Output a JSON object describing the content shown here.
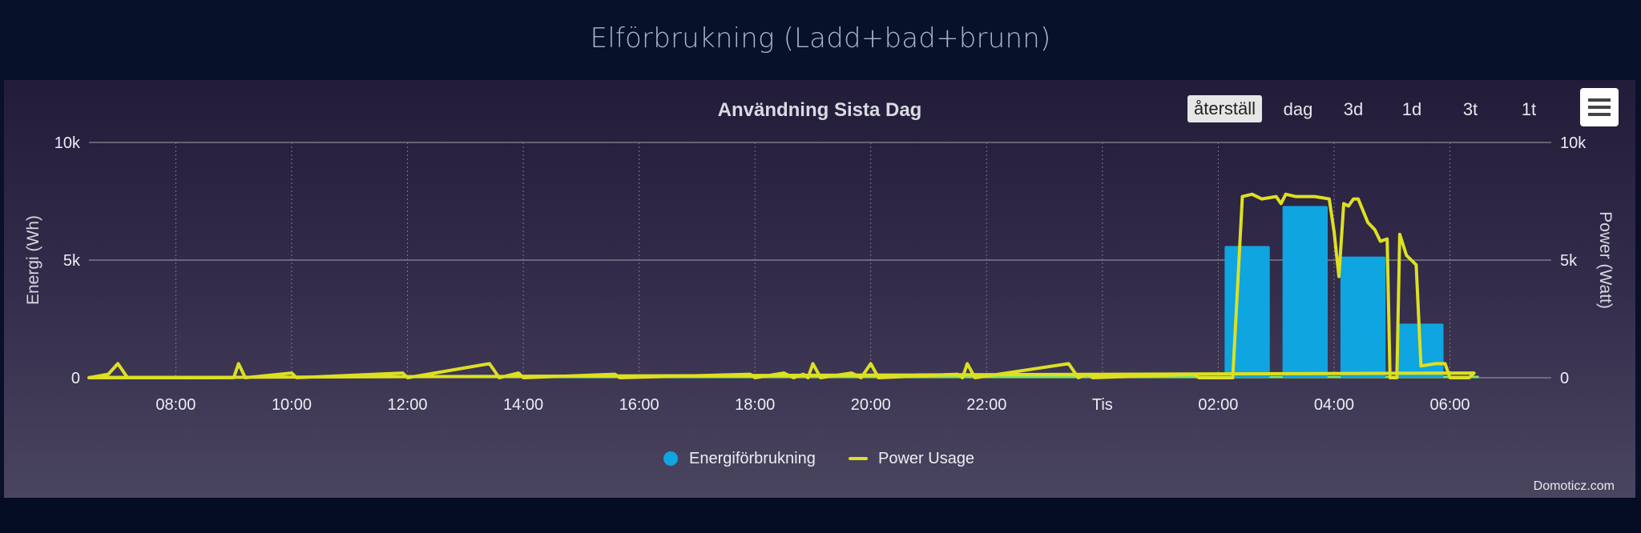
{
  "page": {
    "title": "Elförbrukning (Ladd+bad+brunn)"
  },
  "chart": {
    "title": "Användning Sista Dag",
    "credits": "Domoticz.com",
    "zoom_buttons": [
      "återställ",
      "dag",
      "3d",
      "1d",
      "3t",
      "1t"
    ],
    "menu_icon": "hamburger-menu-icon"
  },
  "chart_data": {
    "type": "bar",
    "title": "Användning Sista Dag",
    "x_ticks": [
      "08:00",
      "10:00",
      "12:00",
      "14:00",
      "16:00",
      "18:00",
      "20:00",
      "22:00",
      "Tis",
      "02:00",
      "04:00",
      "06:00"
    ],
    "x_range": [
      "06:30",
      "07:45 (next day)"
    ],
    "y_left": {
      "label": "Energi (Wh)",
      "ticks": [
        "0",
        "5k",
        "10k"
      ],
      "range": [
        0,
        10000
      ]
    },
    "y_right": {
      "label": "Power (Watt)",
      "ticks": [
        "0",
        "5k",
        "10k"
      ],
      "range": [
        0,
        10000
      ]
    },
    "grid": true,
    "legend_position": "bottom-center",
    "series": [
      {
        "name": "Energiförbrukning",
        "type": "column",
        "color": "#0ea5e0",
        "axis": "left",
        "points": [
          {
            "x": "02:30",
            "y": 5600
          },
          {
            "x": "03:30",
            "y": 7300
          },
          {
            "x": "04:30",
            "y": 5150
          },
          {
            "x": "05:30",
            "y": 2300
          }
        ]
      },
      {
        "name": "Power Usage",
        "type": "line",
        "color": "#dde021",
        "axis": "right",
        "points": [
          {
            "x": "06:30",
            "y": 0
          },
          {
            "x": "06:50",
            "y": 150
          },
          {
            "x": "07:00",
            "y": 600
          },
          {
            "x": "07:10",
            "y": 0
          },
          {
            "x": "09:00",
            "y": 0
          },
          {
            "x": "09:05",
            "y": 600
          },
          {
            "x": "09:12",
            "y": 0
          },
          {
            "x": "10:00",
            "y": 200
          },
          {
            "x": "10:05",
            "y": 0
          },
          {
            "x": "11:55",
            "y": 200
          },
          {
            "x": "12:00",
            "y": 0
          },
          {
            "x": "13:25",
            "y": 600
          },
          {
            "x": "13:35",
            "y": 0
          },
          {
            "x": "13:55",
            "y": 200
          },
          {
            "x": "14:00",
            "y": 0
          },
          {
            "x": "15:35",
            "y": 150
          },
          {
            "x": "15:40",
            "y": 0
          },
          {
            "x": "17:55",
            "y": 150
          },
          {
            "x": "18:00",
            "y": 0
          },
          {
            "x": "18:30",
            "y": 200
          },
          {
            "x": "18:40",
            "y": 0
          },
          {
            "x": "18:50",
            "y": 150
          },
          {
            "x": "18:55",
            "y": 0
          },
          {
            "x": "19:00",
            "y": 600
          },
          {
            "x": "19:08",
            "y": 0
          },
          {
            "x": "19:40",
            "y": 200
          },
          {
            "x": "19:50",
            "y": 0
          },
          {
            "x": "20:00",
            "y": 600
          },
          {
            "x": "20:08",
            "y": 0
          },
          {
            "x": "21:30",
            "y": 150
          },
          {
            "x": "21:35",
            "y": 0
          },
          {
            "x": "21:40",
            "y": 600
          },
          {
            "x": "21:48",
            "y": 0
          },
          {
            "x": "23:25",
            "y": 600
          },
          {
            "x": "23:35",
            "y": 0
          },
          {
            "x": "23:45",
            "y": 150
          },
          {
            "x": "23:50",
            "y": 0
          },
          {
            "x": "01:35",
            "y": 150
          },
          {
            "x": "01:40",
            "y": 0
          },
          {
            "x": "02:15",
            "y": 0
          },
          {
            "x": "02:25",
            "y": 7700
          },
          {
            "x": "02:35",
            "y": 7800
          },
          {
            "x": "02:45",
            "y": 7600
          },
          {
            "x": "03:00",
            "y": 7700
          },
          {
            "x": "03:05",
            "y": 7400
          },
          {
            "x": "03:10",
            "y": 7800
          },
          {
            "x": "03:20",
            "y": 7700
          },
          {
            "x": "03:40",
            "y": 7700
          },
          {
            "x": "03:55",
            "y": 7600
          },
          {
            "x": "04:00",
            "y": 6200
          },
          {
            "x": "04:05",
            "y": 4300
          },
          {
            "x": "04:10",
            "y": 7400
          },
          {
            "x": "04:15",
            "y": 7300
          },
          {
            "x": "04:20",
            "y": 7600
          },
          {
            "x": "04:25",
            "y": 7600
          },
          {
            "x": "04:35",
            "y": 6600
          },
          {
            "x": "04:42",
            "y": 6300
          },
          {
            "x": "04:48",
            "y": 5800
          },
          {
            "x": "04:55",
            "y": 5900
          },
          {
            "x": "04:58",
            "y": 0
          },
          {
            "x": "05:05",
            "y": 0
          },
          {
            "x": "05:08",
            "y": 6100
          },
          {
            "x": "05:15",
            "y": 5200
          },
          {
            "x": "05:25",
            "y": 4800
          },
          {
            "x": "05:30",
            "y": 500
          },
          {
            "x": "05:45",
            "y": 600
          },
          {
            "x": "05:55",
            "y": 600
          },
          {
            "x": "06:00",
            "y": 0
          },
          {
            "x": "06:20",
            "y": 0
          },
          {
            "x": "06:25",
            "y": 200
          },
          {
            "x": "06:30",
            "y": 0
          }
        ]
      },
      {
        "name": "",
        "type": "line",
        "color": "#7ee36a",
        "axis": "left",
        "points": [
          {
            "x": "06:30",
            "y": 0
          },
          {
            "x": "06:30 (next day)",
            "y": 0
          }
        ]
      }
    ]
  }
}
